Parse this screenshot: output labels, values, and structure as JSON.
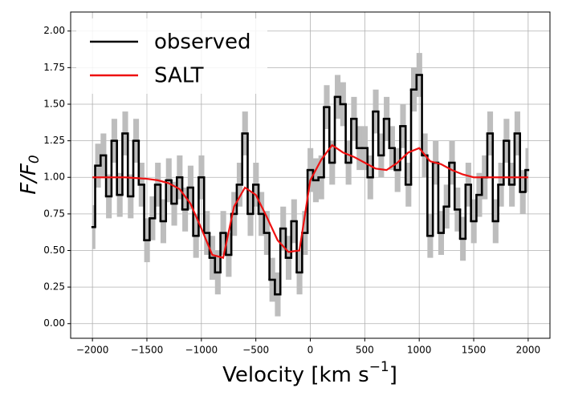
{
  "chart_data": {
    "type": "line",
    "xlabel": {
      "text": "Velocity [km s",
      "sup": "−1",
      "end": "]"
    },
    "ylabel": {
      "text": "F/F",
      "sub": "0"
    },
    "xlim": [
      -2200,
      2200
    ],
    "ylim": [
      -0.1,
      2.13
    ],
    "xticks": [
      {
        "value": -2000,
        "label": "−2000"
      },
      {
        "value": -1500,
        "label": "−1500"
      },
      {
        "value": -1000,
        "label": "−1000"
      },
      {
        "value": -500,
        "label": "−500"
      },
      0,
      500,
      1000,
      1500,
      2000
    ],
    "yticks": [
      {
        "value": 0,
        "label": "0.00"
      },
      {
        "value": 0.25,
        "label": "0.25"
      },
      {
        "value": 0.5,
        "label": "0.50"
      },
      {
        "value": 0.75,
        "label": "0.75"
      },
      {
        "value": 1,
        "label": "1.00"
      },
      {
        "value": 1.25,
        "label": "1.25"
      },
      {
        "value": 1.5,
        "label": "1.50"
      },
      {
        "value": 1.75,
        "label": "1.75"
      },
      {
        "value": 2,
        "label": "2.00"
      }
    ],
    "grid": true,
    "legend": "upper left",
    "series": [
      {
        "name": "observed",
        "color": "#000000",
        "style": "steps",
        "band_color": "#bdbdbd",
        "error": 0.15,
        "x": [
          -2000,
          -1950,
          -1900,
          -1850,
          -1800,
          -1750,
          -1700,
          -1650,
          -1600,
          -1550,
          -1500,
          -1450,
          -1400,
          -1350,
          -1300,
          -1250,
          -1200,
          -1150,
          -1100,
          -1050,
          -1000,
          -950,
          -900,
          -850,
          -800,
          -750,
          -700,
          -650,
          -600,
          -550,
          -500,
          -450,
          -400,
          -350,
          -300,
          -250,
          -200,
          -150,
          -100,
          -50,
          0,
          50,
          100,
          150,
          200,
          250,
          300,
          350,
          400,
          450,
          500,
          550,
          600,
          650,
          700,
          750,
          800,
          850,
          900,
          950,
          1000,
          1050,
          1100,
          1150,
          1200,
          1250,
          1300,
          1350,
          1400,
          1450,
          1500,
          1550,
          1600,
          1650,
          1700,
          1750,
          1800,
          1850,
          1900,
          1950,
          2000
        ],
        "values": [
          0.66,
          1.08,
          1.15,
          0.87,
          1.25,
          0.88,
          1.3,
          0.87,
          1.25,
          0.95,
          0.57,
          0.72,
          0.95,
          0.7,
          0.98,
          0.82,
          1.0,
          0.78,
          0.93,
          0.6,
          1.0,
          0.62,
          0.45,
          0.35,
          0.62,
          0.47,
          0.75,
          0.95,
          1.3,
          0.75,
          0.95,
          0.75,
          0.62,
          0.3,
          0.2,
          0.65,
          0.45,
          0.7,
          0.35,
          0.62,
          1.05,
          0.98,
          1.0,
          1.48,
          1.1,
          1.55,
          1.5,
          1.1,
          1.4,
          1.2,
          1.2,
          1.0,
          1.45,
          1.15,
          1.4,
          1.2,
          1.05,
          1.35,
          0.95,
          1.6,
          1.7,
          1.15,
          0.6,
          1.1,
          0.62,
          0.8,
          1.1,
          0.78,
          0.58,
          0.95,
          0.7,
          0.88,
          1.0,
          1.3,
          0.7,
          0.95,
          1.25,
          0.95,
          1.3,
          0.9,
          1.05
        ]
      },
      {
        "name": "SALT",
        "color": "#ee1111",
        "style": "line",
        "x": [
          -2000,
          -1900,
          -1800,
          -1700,
          -1600,
          -1500,
          -1400,
          -1300,
          -1200,
          -1100,
          -1000,
          -900,
          -800,
          -700,
          -600,
          -500,
          -400,
          -300,
          -200,
          -100,
          0,
          100,
          200,
          300,
          400,
          500,
          600,
          700,
          800,
          900,
          1000,
          1100,
          1200,
          1300,
          1400,
          1500,
          1600,
          1700,
          1800,
          1900,
          2000
        ],
        "values": [
          1.0,
          1.0,
          1.0,
          1.0,
          0.995,
          0.99,
          0.98,
          0.96,
          0.92,
          0.82,
          0.65,
          0.47,
          0.45,
          0.8,
          0.93,
          0.88,
          0.73,
          0.57,
          0.49,
          0.5,
          0.98,
          1.12,
          1.22,
          1.17,
          1.14,
          1.1,
          1.06,
          1.05,
          1.1,
          1.17,
          1.2,
          1.11,
          1.09,
          1.05,
          1.02,
          1.0,
          1.0,
          1.0,
          1.0,
          1.0,
          1.0
        ]
      }
    ]
  }
}
